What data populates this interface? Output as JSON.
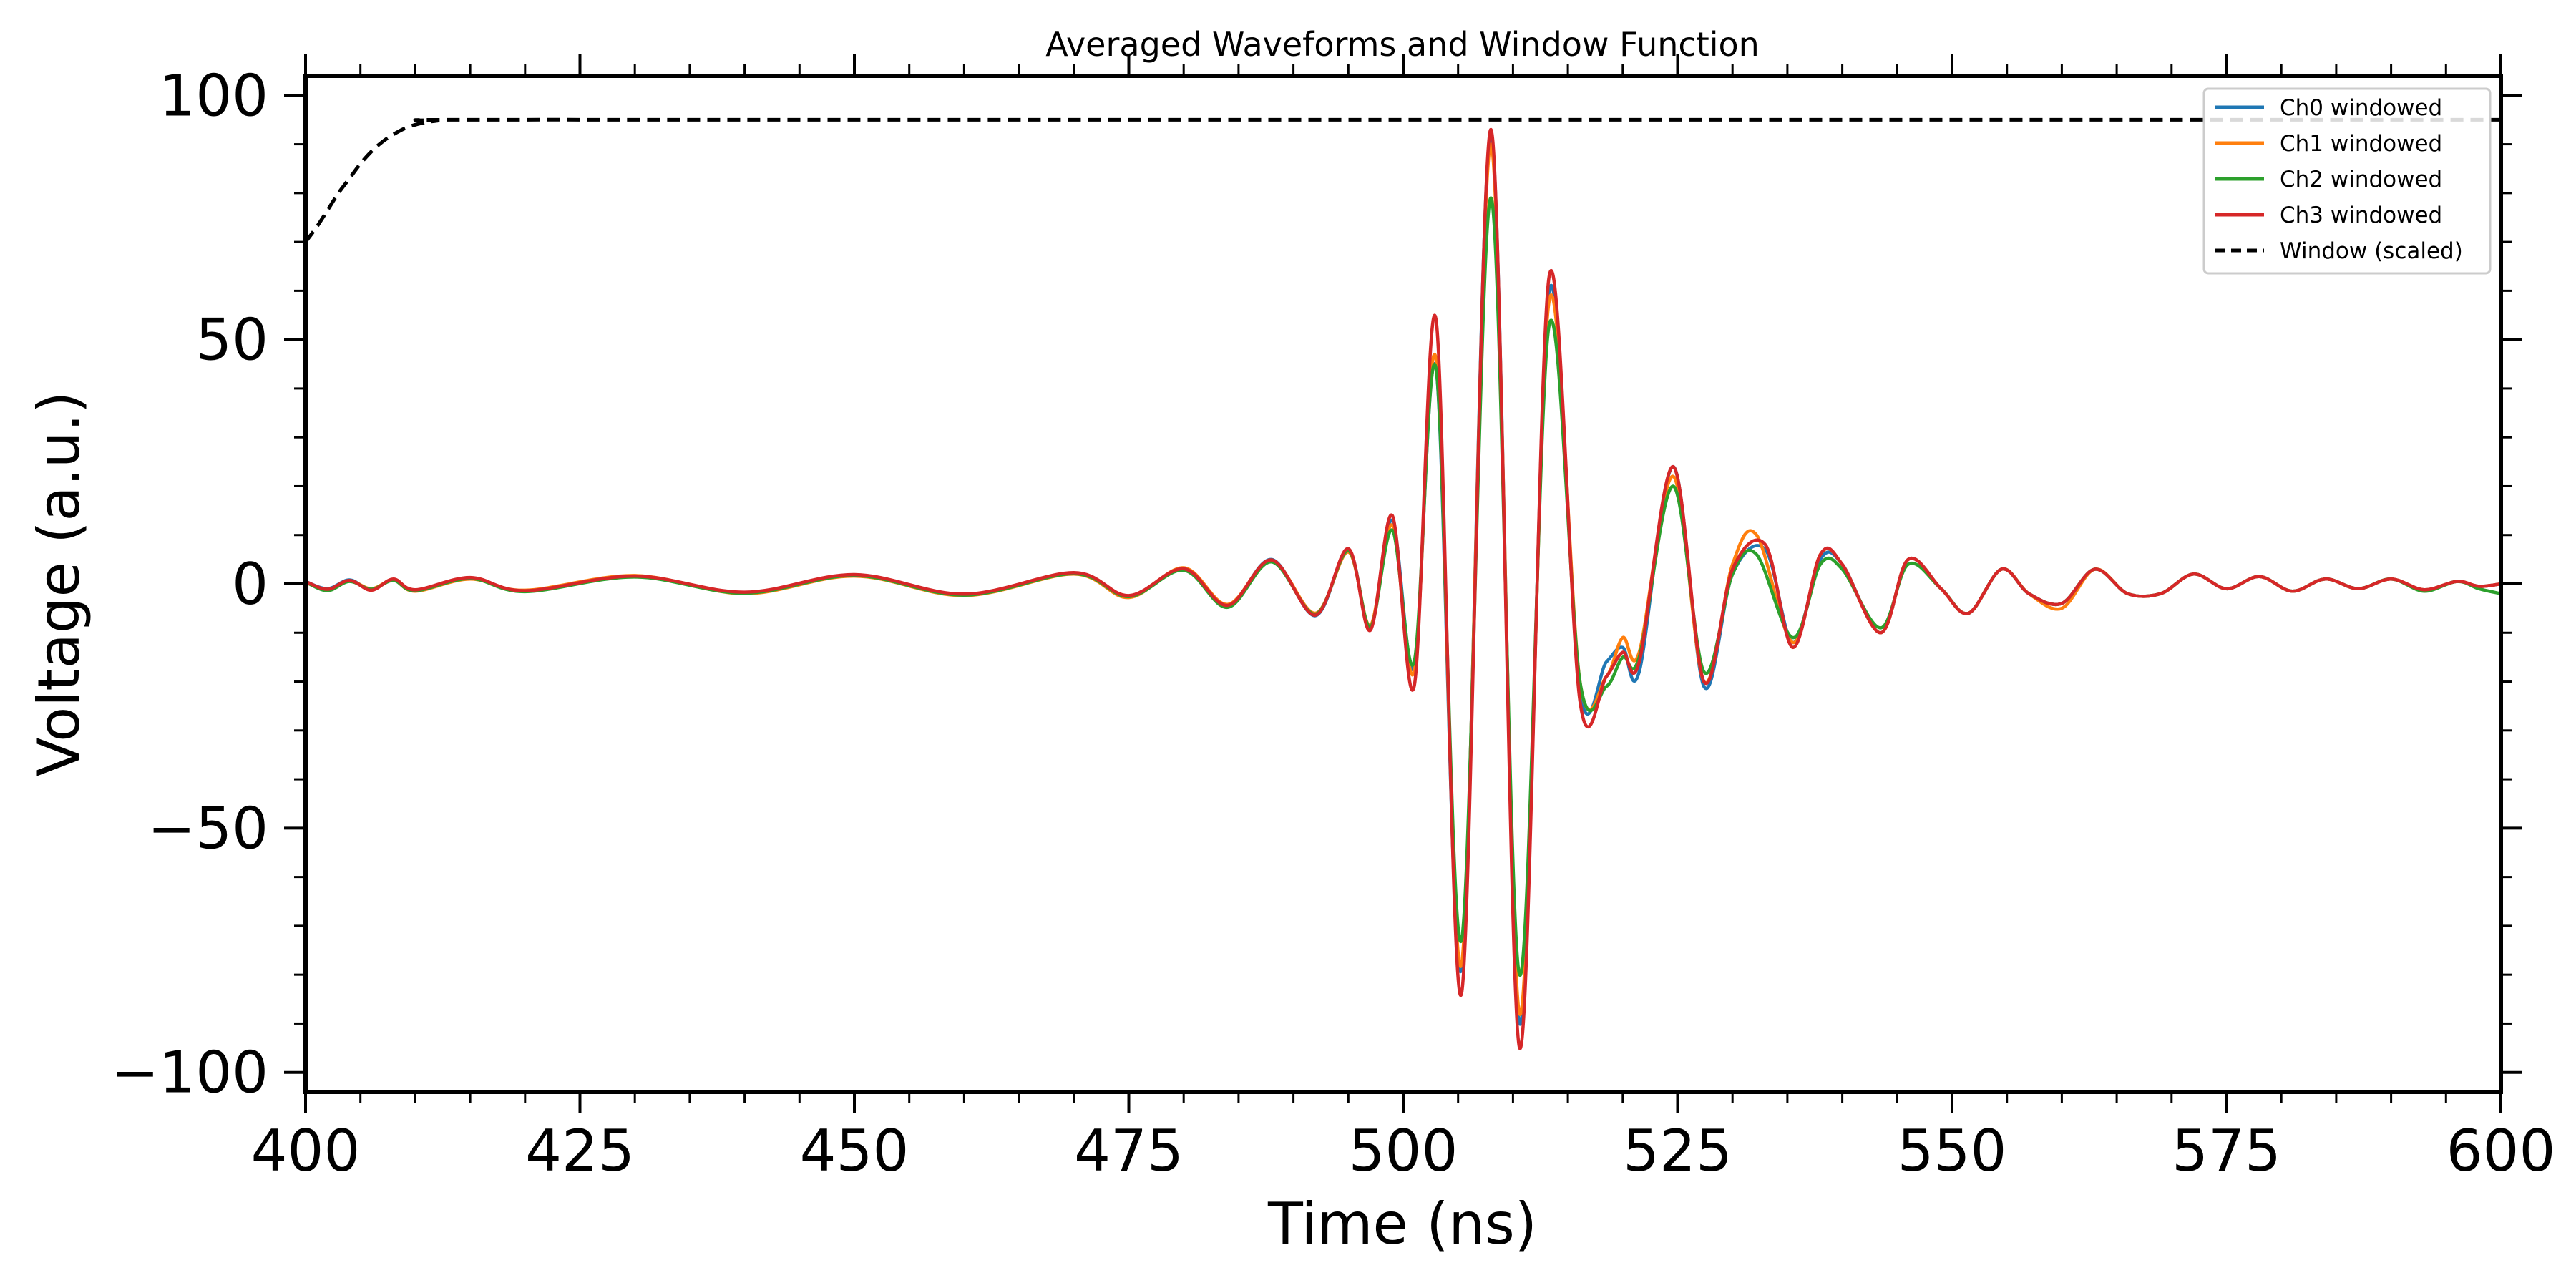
{
  "chart_data": {
    "type": "line",
    "title": "Averaged Waveforms and Window Function",
    "xlabel": "Time (ns)",
    "ylabel": "Voltage (a.u.)",
    "xlim": [
      400,
      600
    ],
    "ylim": [
      -104,
      104
    ],
    "xticks": [
      400,
      425,
      450,
      475,
      500,
      525,
      550,
      575,
      600
    ],
    "xtick_labels": [
      "400",
      "425",
      "450",
      "475",
      "500",
      "525",
      "550",
      "575",
      "600"
    ],
    "yticks": [
      -100,
      -50,
      0,
      50,
      100
    ],
    "ytick_labels": [
      "−100",
      "−50",
      "0",
      "50",
      "100"
    ],
    "grid": false,
    "legend_position": "top-right",
    "series": [
      {
        "name": "Ch0 windowed",
        "color": "#1f77b4",
        "style": "solid",
        "x": [
          400,
          402,
          404,
          406,
          408,
          410,
          415,
          420,
          430,
          440,
          450,
          460,
          470,
          475,
          480,
          484,
          488,
          492,
          495,
          497,
          499,
          501,
          503,
          505.3,
          508,
          510.6,
          513.3,
          516.1,
          518.5,
          520,
          521.5,
          524.6,
          527.4,
          530,
          533,
          535.5,
          538,
          540,
          543.5,
          546,
          549,
          551.5,
          554.5,
          557,
          560,
          563,
          566,
          569,
          572,
          575,
          578,
          581,
          584,
          587,
          590,
          593,
          596,
          598,
          600
        ],
        "y": [
          0.5,
          -1,
          0.8,
          -1.2,
          0.9,
          -1.3,
          1.2,
          -1.5,
          1.5,
          -1.8,
          1.8,
          -2.2,
          2.2,
          -2.5,
          3,
          -4.5,
          5,
          -6.5,
          7,
          -9,
          13,
          -17,
          44,
          -79,
          92,
          -90,
          60,
          -22,
          -16,
          -13,
          -18,
          24,
          -21,
          2,
          7,
          -12,
          5,
          4,
          -10,
          5,
          -1,
          -6,
          3,
          -2,
          -4,
          3,
          -2,
          -2,
          2,
          -1,
          1.5,
          -1.5,
          1,
          -1,
          1,
          -1.2,
          0.5,
          -0.5,
          0
        ]
      },
      {
        "name": "Ch1 windowed",
        "color": "#ff7f0e",
        "style": "solid",
        "x": [
          400,
          402,
          404,
          406,
          408,
          410,
          415,
          420,
          430,
          440,
          450,
          460,
          470,
          475,
          480,
          484,
          488,
          492,
          495,
          497,
          499,
          501,
          503,
          505.3,
          508,
          510.6,
          513.3,
          516.1,
          518.5,
          520,
          521.5,
          524.6,
          527.4,
          530,
          532.2,
          535.5,
          538,
          540,
          543.5,
          546,
          549,
          551.5,
          554.5,
          557,
          560,
          563,
          566,
          569,
          572,
          575,
          578,
          581,
          584,
          587,
          590,
          593,
          596,
          598,
          600
        ],
        "y": [
          0.3,
          -1.2,
          0.6,
          -1,
          0.8,
          -1.5,
          1,
          -1.3,
          1.7,
          -2,
          1.6,
          -2.4,
          2,
          -2.8,
          3.3,
          -4.2,
          4.8,
          -6,
          6.5,
          -8.5,
          12,
          -18,
          46,
          -78,
          90,
          -88,
          58,
          -20,
          -19,
          -11,
          -14,
          22,
          -20,
          4,
          10,
          -12,
          6,
          4,
          -10,
          5,
          -1,
          -6,
          3,
          -2,
          -5,
          3,
          -2,
          -2,
          2,
          -1,
          1.5,
          -1.5,
          1,
          -1,
          1,
          -1.2,
          0.5,
          -0.5,
          0
        ]
      },
      {
        "name": "Ch2 windowed",
        "color": "#2ca02c",
        "style": "solid",
        "x": [
          400,
          402,
          404,
          406,
          408,
          410,
          415,
          420,
          430,
          440,
          450,
          460,
          470,
          475,
          480,
          484,
          488,
          492,
          495,
          497,
          499,
          501,
          503,
          505.3,
          508,
          510.6,
          513.3,
          516.1,
          518.5,
          520,
          521.5,
          524.6,
          527.4,
          530,
          532.2,
          535.5,
          538,
          540,
          543.5,
          546,
          549,
          551.5,
          554.5,
          557,
          560,
          563,
          566,
          569,
          572,
          575,
          578,
          581,
          584,
          587,
          590,
          593,
          596,
          598,
          600
        ],
        "y": [
          0.4,
          -1.4,
          0.5,
          -1.1,
          0.7,
          -1.4,
          1.1,
          -1.6,
          1.4,
          -1.9,
          1.7,
          -2.3,
          2.1,
          -2.6,
          2.8,
          -4.8,
          4.5,
          -6.2,
          6.8,
          -8.8,
          11,
          -16,
          44,
          -73,
          79,
          -80,
          53,
          -20,
          -21,
          -15,
          -15,
          20,
          -18,
          2,
          6,
          -11,
          4,
          3,
          -9,
          4,
          -1,
          -6,
          3,
          -2,
          -4,
          3,
          -2,
          -2,
          2,
          -1,
          1.5,
          -1.5,
          1,
          -1,
          1,
          -1.5,
          0.5,
          -1,
          -2
        ]
      },
      {
        "name": "Ch3 windowed",
        "color": "#d62728",
        "style": "solid",
        "x": [
          400,
          402,
          404,
          406,
          408,
          410,
          415,
          420,
          430,
          440,
          450,
          460,
          470,
          475,
          480,
          484,
          488,
          492,
          495,
          497,
          499,
          501,
          503,
          505.3,
          508,
          510.6,
          513.3,
          516.1,
          518.5,
          520,
          521.5,
          524.6,
          527.4,
          530,
          533,
          535.5,
          538,
          540,
          543.5,
          546,
          549,
          551.5,
          554.5,
          557,
          560,
          563,
          566,
          569,
          572,
          575,
          578,
          581,
          584,
          587,
          590,
          593,
          596,
          598,
          600
        ],
        "y": [
          0.5,
          -1.1,
          0.7,
          -1.3,
          1,
          -1.2,
          1.3,
          -1.4,
          1.6,
          -1.7,
          1.9,
          -2.1,
          2.3,
          -2.4,
          3.1,
          -4.4,
          4.9,
          -6.4,
          7.2,
          -9.5,
          14,
          -21,
          54,
          -84,
          93,
          -95,
          63,
          -24,
          -19,
          -14,
          -16,
          24,
          -20,
          3,
          8,
          -13,
          6,
          4,
          -10,
          5,
          -1,
          -6,
          3,
          -2,
          -4,
          3,
          -2,
          -2,
          2,
          -1,
          1.5,
          -1.5,
          1,
          -1,
          1,
          -1.2,
          0.5,
          -0.5,
          0
        ]
      },
      {
        "name": "Window (scaled)",
        "color": "#000000",
        "style": "dashed",
        "x": [
          400,
          401,
          402,
          403,
          404,
          405,
          406,
          407,
          408,
          409,
          410,
          411,
          412,
          413,
          450,
          500,
          550,
          600
        ],
        "y": [
          70,
          73,
          76.5,
          80,
          83,
          86,
          88.5,
          90.5,
          92,
          93.2,
          94,
          94.5,
          94.8,
          95,
          95,
          95,
          95,
          95
        ]
      }
    ]
  }
}
